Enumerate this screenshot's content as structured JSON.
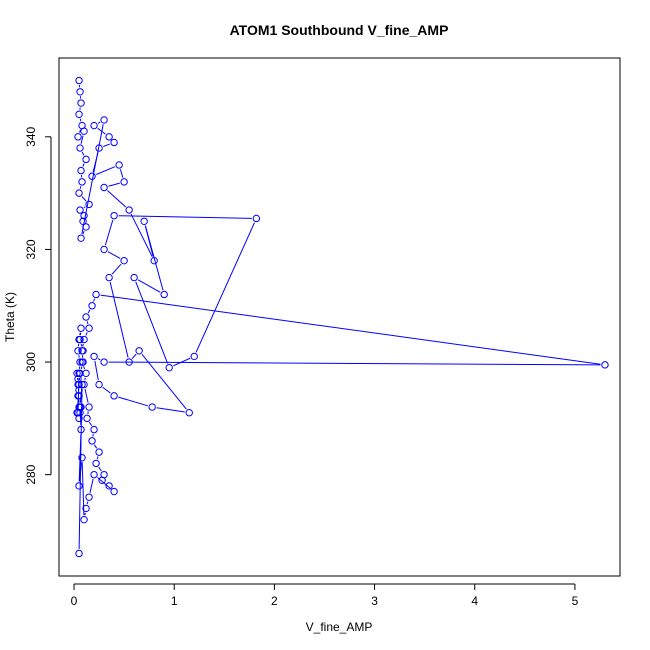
{
  "chart_data": {
    "type": "line",
    "title": "ATOM1 Southbound V_fine_AMP",
    "xlabel": "V_fine_AMP",
    "ylabel": "Theta (K)",
    "xlim": [
      -0.15,
      5.45
    ],
    "ylim": [
      262,
      354
    ],
    "xticks": [
      0,
      1,
      2,
      3,
      4,
      5
    ],
    "yticks": [
      280,
      300,
      320,
      340
    ],
    "grid": false,
    "legend": "none",
    "colors": {
      "series": "#0000ff",
      "axis": "#000000"
    },
    "series": [
      {
        "markers": "open-circle",
        "x": [
          0.05,
          0.06,
          0.07,
          0.05,
          0.08,
          0.04,
          0.1,
          0.06,
          0.12,
          0.07,
          0.08,
          0.05,
          0.15,
          0.06,
          0.1,
          0.09,
          0.12,
          0.07,
          0.3,
          0.2,
          0.35,
          0.4,
          0.25,
          0.18,
          0.45,
          0.5,
          0.3,
          0.55,
          0.8,
          0.7,
          0.9,
          0.6,
          0.95,
          1.2,
          1.82,
          0.4,
          0.3,
          0.5,
          0.35,
          0.55,
          0.65,
          1.15,
          0.78,
          0.4,
          0.25,
          0.2,
          0.3,
          5.3,
          0.22,
          0.18,
          0.12,
          0.15,
          0.1,
          0.08,
          0.09,
          0.06,
          0.05,
          0.04,
          0.05,
          0.06,
          0.05,
          0.07,
          0.05,
          0.04,
          0.03,
          0.04,
          0.05,
          0.03,
          0.04,
          0.05,
          0.06,
          0.04,
          0.05,
          0.07,
          0.06,
          0.09,
          0.08,
          0.12,
          0.1,
          0.15,
          0.13,
          0.2,
          0.18,
          0.25,
          0.22,
          0.3,
          0.28,
          0.35,
          0.4,
          0.2,
          0.15,
          0.12,
          0.1,
          0.08,
          0.05,
          0.07,
          0.06,
          0.08,
          0.05
        ],
        "y": [
          350,
          348,
          346,
          344,
          342,
          340,
          341,
          338,
          336,
          334,
          332,
          330,
          328,
          327,
          326,
          325,
          324,
          322,
          343,
          342,
          340,
          339,
          338,
          333,
          335,
          332,
          331,
          327,
          318,
          325,
          312,
          315,
          299,
          301,
          325.5,
          326,
          320,
          318,
          315,
          300,
          302,
          291,
          292,
          294,
          296,
          301,
          300,
          299.5,
          312,
          310,
          308,
          306,
          304,
          302,
          300,
          298,
          296,
          294,
          292,
          291,
          290,
          292,
          294,
          296,
          298,
          297,
          295,
          291,
          291,
          298,
          300,
          302,
          304,
          306,
          304,
          302,
          300,
          298,
          296,
          292,
          290,
          288,
          286,
          284,
          282,
          280,
          279,
          278,
          277,
          280,
          276,
          274,
          272,
          283,
          278,
          288,
          292,
          296,
          266
        ]
      }
    ]
  }
}
